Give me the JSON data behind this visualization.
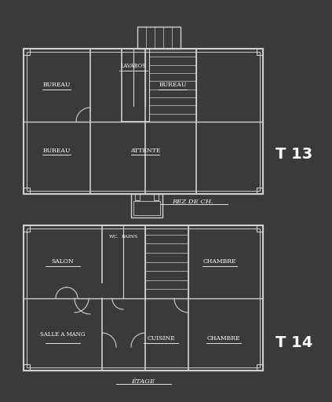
{
  "bg_color": "#3a3a3a",
  "line_color": "#d0d0d0",
  "text_color": "#ffffff",
  "title1": "T 13",
  "title2": "T 14",
  "label1": "REZ DE CH.",
  "label2": "ÉTAGE",
  "plan1_labels": [
    "BUREAU",
    "LAVABOS",
    "BUREAU",
    "BUREAU",
    "ATTENTE"
  ],
  "plan2_labels": [
    "SALON",
    "WC.",
    "BAINS",
    "CHAMBRE",
    "SALLE A MANG",
    "CUISINE",
    "CHAMBRE"
  ],
  "figsize": [
    4.23,
    5.12
  ],
  "dpi": 100
}
